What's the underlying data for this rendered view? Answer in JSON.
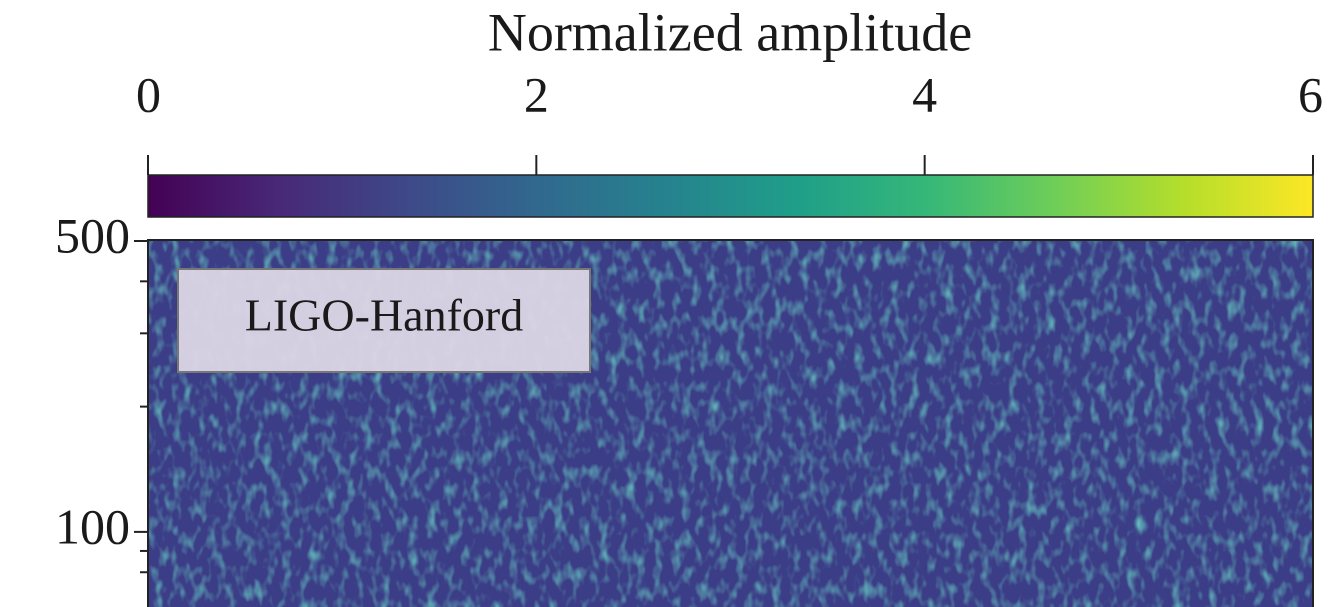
{
  "chart_data": {
    "type": "heatmap",
    "title": "Normalized amplitude",
    "annotation": "LIGO-Hanford",
    "colorbar": {
      "lim": [
        0,
        6
      ],
      "ticks": [
        0,
        2,
        4,
        6
      ],
      "colormap": [
        "#440154",
        "#482878",
        "#3e4989",
        "#31688e",
        "#26828e",
        "#1f9e89",
        "#35b779",
        "#6ece58",
        "#b5de2b",
        "#fde725"
      ]
    },
    "ylim": [
      66,
      500
    ],
    "yticks": [
      100,
      500
    ],
    "yminorticks": [
      80,
      90,
      200,
      300,
      400
    ],
    "yscale": "log"
  }
}
